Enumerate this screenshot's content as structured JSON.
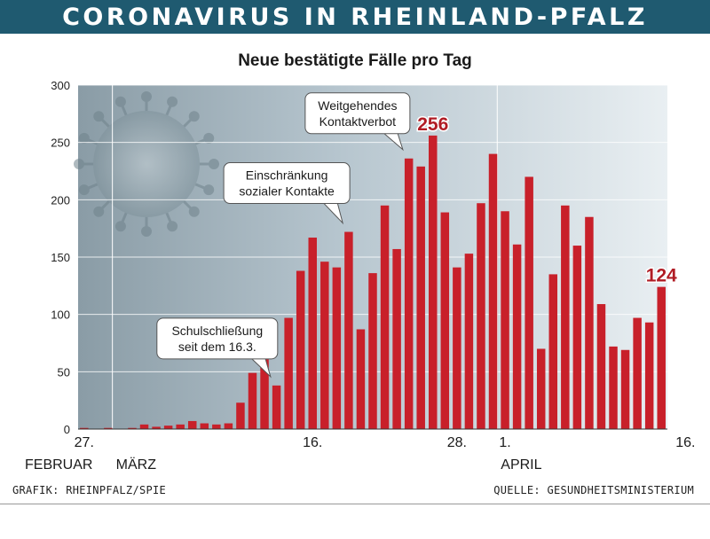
{
  "header": {
    "title": "CORONAVIRUS IN RHEINLAND-PFALZ"
  },
  "footer": {
    "credit": "GRAFIK: RHEINPFALZ/SPIE",
    "source": "QUELLE: GESUNDHEITSMINISTERIUM"
  },
  "colors": {
    "banner": "#1f5a70",
    "bar": "#c8202a",
    "highlight_text": "#b01c24"
  },
  "chart_data": {
    "type": "bar",
    "title": "Neue bestätigte Fälle pro Tag",
    "xlabel": "",
    "ylabel": "",
    "ylim": [
      0,
      300
    ],
    "yticks": [
      0,
      50,
      100,
      150,
      200,
      250,
      300
    ],
    "x_tick_labels": [
      {
        "label": "27.",
        "index": 0
      },
      {
        "label": "16.",
        "index": 19
      },
      {
        "label": "28.",
        "index": 31
      },
      {
        "label": "1.",
        "index": 35
      },
      {
        "label": "16.",
        "index": 50
      }
    ],
    "month_labels": [
      {
        "label": "FEBRUAR",
        "index": 0
      },
      {
        "label": "MÄRZ",
        "index": 3
      },
      {
        "label": "APRIL",
        "index": 35
      }
    ],
    "values": [
      1,
      0,
      1,
      0,
      1,
      4,
      2,
      3,
      4,
      7,
      5,
      4,
      5,
      23,
      49,
      61,
      38,
      97,
      138,
      167,
      146,
      141,
      172,
      87,
      136,
      195,
      157,
      236,
      229,
      256,
      189,
      141,
      153,
      197,
      240,
      190,
      161,
      220,
      70,
      135,
      195,
      160,
      185,
      109,
      72,
      69,
      97,
      93,
      124
    ],
    "value_labels": [
      {
        "index": 29,
        "text": "256"
      },
      {
        "index": 48,
        "text": "124"
      }
    ],
    "annotations": [
      {
        "lines": [
          "Weitgehendes",
          "Kontaktverbot"
        ],
        "index": 27
      },
      {
        "lines": [
          "Einschränkung",
          "sozialer Kontakte"
        ],
        "index": 22
      },
      {
        "lines": [
          "Schulschließung",
          "seit dem 16.3."
        ],
        "index": 16
      }
    ]
  }
}
